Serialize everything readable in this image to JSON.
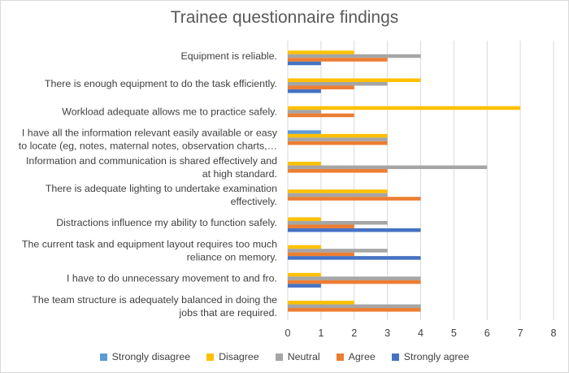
{
  "chart_data": {
    "type": "bar",
    "orientation": "horizontal",
    "title": "Trainee questionnaire findings",
    "categories": [
      [
        "Equipment is reliable."
      ],
      [
        "There is enough equipment to do the task efficiently."
      ],
      [
        "Workload adequate allows me to practice safely."
      ],
      [
        "I have all the information relevant easily available or easy",
        "to locate (eg, notes, maternal notes, observation charts,…"
      ],
      [
        "Information and communication is shared effectively and",
        "at high standard."
      ],
      [
        "There is adequate lighting to undertake examination",
        "effectively."
      ],
      [
        "Distractions influence my ability to function safely."
      ],
      [
        "The current task and equipment layout requires too much",
        "reliance on memory."
      ],
      [
        "I have to do unnecessary movement to and fro."
      ],
      [
        "The team structure is adequately balanced in doing the",
        "jobs that are required."
      ]
    ],
    "series": [
      {
        "name": "Strongly disagree",
        "color": "#5b9bd5",
        "values": [
          0,
          0,
          0,
          1,
          0,
          0,
          0,
          0,
          0,
          0
        ]
      },
      {
        "name": "Disagree",
        "color": "#ffc000",
        "values": [
          2,
          4,
          7,
          3,
          1,
          3,
          1,
          1,
          1,
          2
        ]
      },
      {
        "name": "Neutral",
        "color": "#a5a5a5",
        "values": [
          4,
          3,
          1,
          3,
          6,
          3,
          3,
          3,
          4,
          4
        ]
      },
      {
        "name": "Agree",
        "color": "#ed7d31",
        "values": [
          3,
          2,
          2,
          3,
          3,
          4,
          2,
          2,
          4,
          4
        ]
      },
      {
        "name": "Strongly agree",
        "color": "#4472c4",
        "values": [
          1,
          1,
          0,
          0,
          0,
          0,
          4,
          4,
          1,
          0
        ]
      }
    ],
    "xlim": [
      0,
      8
    ],
    "xticks": [
      "0",
      "1",
      "2",
      "3",
      "4",
      "5",
      "6",
      "7",
      "8"
    ],
    "grid": true,
    "legend": "bottom"
  }
}
